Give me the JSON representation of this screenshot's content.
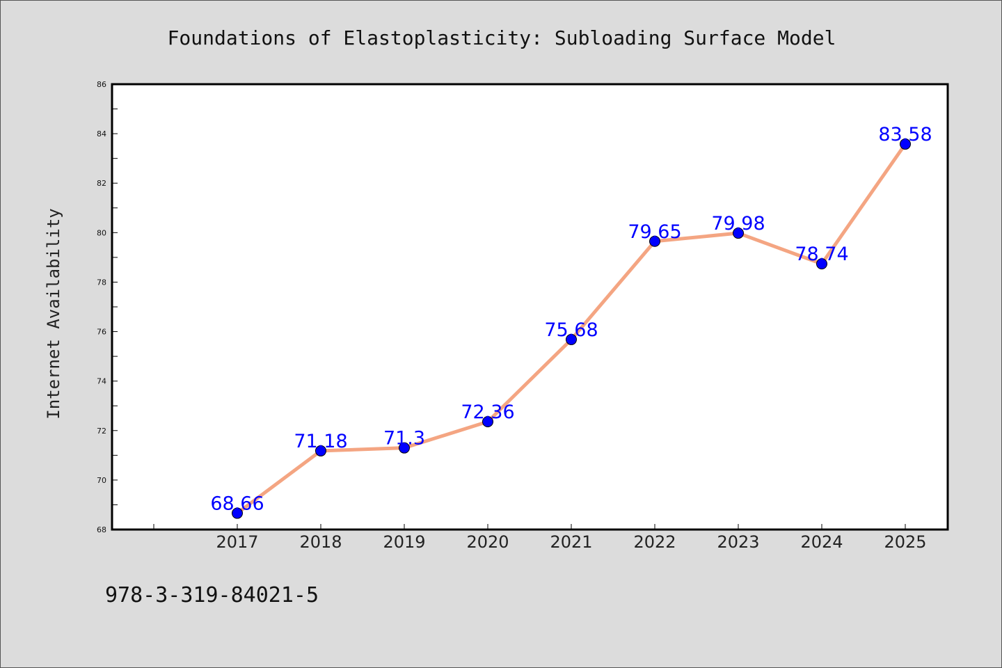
{
  "chart_data": {
    "type": "line",
    "title": "Foundations of Elastoplasticity: Subloading Surface Model",
    "xlabel": "",
    "ylabel": "Internet Availability",
    "categories": [
      "2017",
      "2018",
      "2019",
      "2020",
      "2021",
      "2022",
      "2023",
      "2024",
      "2025"
    ],
    "values": [
      68.66,
      71.18,
      71.3,
      72.36,
      75.68,
      79.65,
      79.98,
      78.74,
      83.58
    ],
    "data_labels": [
      "68.66",
      "71.18",
      "71.3",
      "72.36",
      "75.68",
      "79.65",
      "79.98",
      "78.74",
      "83.58"
    ],
    "ylim": [
      68,
      86
    ],
    "yticks": [
      "68",
      "70",
      "72",
      "74",
      "76",
      "78",
      "80",
      "82",
      "84",
      "86"
    ],
    "grid": false,
    "legend": "none",
    "colors": {
      "line": "#f4a582",
      "marker": "#0000ff",
      "label": "#0000ff",
      "background": "#dcdcdc",
      "plot_background": "#ffffff"
    }
  },
  "footer": {
    "isbn": "978-3-319-84021-5"
  }
}
